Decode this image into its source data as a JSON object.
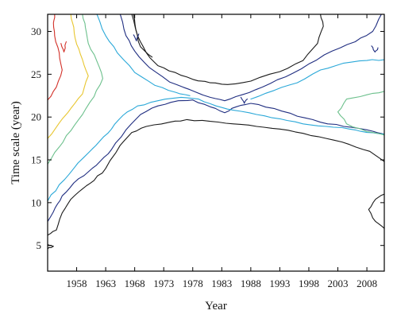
{
  "chart_data": {
    "type": "contour",
    "xlabel": "Year",
    "ylabel": "Time scale (year)",
    "xlim": [
      1953,
      2011
    ],
    "ylim": [
      2,
      32
    ],
    "xticks": [
      1958,
      1963,
      1968,
      1973,
      1978,
      1983,
      1988,
      1993,
      1998,
      2003,
      2008
    ],
    "xtick_labels": [
      "1958",
      "1963",
      "1968",
      "1973",
      "1978",
      "1983",
      "1988",
      "1993",
      "1998",
      "2003",
      "2008"
    ],
    "yticks": [
      5,
      10,
      15,
      20,
      25,
      30
    ],
    "ytick_labels": [
      "5",
      "10",
      "15",
      "20",
      "25",
      "30"
    ],
    "grid": false,
    "contours": [
      {
        "level": 1,
        "color": "#1a1a1a",
        "paths": [
          [
            [
              1953,
              6.2
            ],
            [
              1954.5,
              6.8
            ],
            [
              1955.5,
              8.8
            ],
            [
              1957,
              10.4
            ],
            [
              1959,
              11.6
            ],
            [
              1961,
              12.6
            ],
            [
              1963,
              14
            ],
            [
              1965.5,
              16.7
            ],
            [
              1967.5,
              18.2
            ],
            [
              1970,
              18.9
            ],
            [
              1974,
              19.4
            ],
            [
              1977,
              19.7
            ],
            [
              1981,
              19.5
            ],
            [
              1985,
              19.2
            ],
            [
              1989,
              18.9
            ],
            [
              1993,
              18.6
            ],
            [
              1997,
              18.1
            ],
            [
              2001,
              17.5
            ],
            [
              2005,
              16.8
            ],
            [
              2008.5,
              16
            ],
            [
              2011,
              14.8
            ]
          ],
          [
            [
              1967.5,
              32
            ],
            [
              1968.5,
              29.5
            ],
            [
              1970,
              27.5
            ],
            [
              1972,
              26
            ],
            [
              1975,
              25.2
            ],
            [
              1978,
              24.4
            ],
            [
              1981,
              24
            ],
            [
              1984,
              23.8
            ],
            [
              1988,
              24.2
            ],
            [
              1993,
              25.3
            ],
            [
              1997,
              26.6
            ],
            [
              1999.5,
              28.6
            ],
            [
              2000.5,
              30.6
            ],
            [
              2000,
              32
            ]
          ],
          [
            [
              1967.8,
              32
            ],
            [
              1968.2,
              30.2
            ],
            [
              1969,
              28.2
            ],
            [
              1971,
              27
            ]
          ],
          [
            [
              1953,
              5.1
            ],
            [
              1954,
              4.9
            ],
            [
              1953,
              4.6
            ]
          ],
          [
            [
              2011,
              11
            ],
            [
              2009.5,
              10.4
            ],
            [
              2008.3,
              9.2
            ],
            [
              2009.5,
              7.8
            ],
            [
              2011,
              7
            ]
          ]
        ]
      },
      {
        "level": 2,
        "color": "#1f2d80",
        "paths": [
          [
            [
              1953,
              7.8
            ],
            [
              1954.3,
              9.4
            ],
            [
              1955.5,
              10.8
            ],
            [
              1957.5,
              12.3
            ],
            [
              1960,
              13.6
            ],
            [
              1962,
              14.8
            ],
            [
              1964,
              16.2
            ],
            [
              1966.5,
              18.5
            ],
            [
              1969,
              20.3
            ],
            [
              1972,
              21.3
            ],
            [
              1975.5,
              21.9
            ],
            [
              1978,
              22
            ],
            [
              1981,
              21.2
            ],
            [
              1983.5,
              20.5
            ],
            [
              1985.5,
              21.2
            ],
            [
              1988,
              21.6
            ],
            [
              1992,
              21
            ],
            [
              1996,
              20.1
            ],
            [
              2000,
              19.4
            ],
            [
              2004,
              18.9
            ],
            [
              2008,
              18.5
            ],
            [
              2011,
              18
            ]
          ],
          [
            [
              1965.5,
              32
            ],
            [
              1966.5,
              29.5
            ],
            [
              1968,
              27.7
            ],
            [
              1970.5,
              25.8
            ],
            [
              1974,
              24.1
            ],
            [
              1977.5,
              23.2
            ],
            [
              1981,
              22.3
            ],
            [
              1983.5,
              21.9
            ],
            [
              1986.5,
              22.6
            ],
            [
              1990,
              23.5
            ],
            [
              1994,
              24.7
            ],
            [
              1998,
              26.2
            ],
            [
              2002,
              27.7
            ],
            [
              2006,
              28.8
            ],
            [
              2009,
              30
            ],
            [
              2010.5,
              32
            ]
          ],
          [
            [
              1967.8,
              29.6
            ],
            [
              1968.3,
              28.9
            ],
            [
              1968.7,
              29.7
            ]
          ],
          [
            [
              1986.3,
              22.3
            ],
            [
              1986.9,
              21.6
            ],
            [
              1987.4,
              22.1
            ]
          ],
          [
            [
              2008.8,
              28.3
            ],
            [
              2009.4,
              27.6
            ],
            [
              2009.9,
              28.1
            ]
          ]
        ]
      },
      {
        "level": 3,
        "color": "#2aa8d8",
        "paths": [
          [
            [
              1953,
              10.2
            ],
            [
              1955,
              12.1
            ],
            [
              1957.5,
              14
            ],
            [
              1960,
              15.8
            ],
            [
              1962,
              17.2
            ],
            [
              1964,
              18.6
            ],
            [
              1966,
              20.2
            ],
            [
              1968.5,
              21.3
            ],
            [
              1972,
              21.9
            ],
            [
              1976,
              22.3
            ],
            [
              1979,
              22.1
            ],
            [
              1982,
              21.3
            ],
            [
              1985,
              20.8
            ],
            [
              1989,
              20.3
            ],
            [
              1993,
              19.8
            ],
            [
              1997,
              19.2
            ],
            [
              2001,
              18.9
            ],
            [
              2005,
              18.6
            ],
            [
              2008,
              18.2
            ],
            [
              2011,
              18
            ]
          ],
          [
            [
              1961.5,
              32
            ],
            [
              1963,
              29.5
            ],
            [
              1965,
              27.5
            ],
            [
              1968,
              25.2
            ],
            [
              1971.5,
              23.7
            ],
            [
              1975,
              22.9
            ],
            [
              1977.5,
              22.5
            ]
          ],
          [
            [
              1988,
              22.1
            ],
            [
              1992,
              23.1
            ],
            [
              1996,
              24
            ],
            [
              2000,
              25.5
            ],
            [
              2004,
              26.3
            ],
            [
              2008,
              26.6
            ],
            [
              2011,
              26.7
            ]
          ]
        ]
      },
      {
        "level": 4,
        "color": "#6cc08c",
        "paths": [
          [
            [
              1953,
              14.5
            ],
            [
              1955,
              16.5
            ],
            [
              1957,
              18.4
            ],
            [
              1959,
              20.3
            ],
            [
              1961,
              22.4
            ],
            [
              1962.5,
              24.5
            ],
            [
              1961.5,
              26.5
            ],
            [
              1960,
              28.6
            ],
            [
              1959.5,
              30.5
            ],
            [
              1959,
              32
            ]
          ],
          [
            [
              2011,
              17.9
            ],
            [
              2008,
              18.3
            ],
            [
              2004.5,
              19.2
            ],
            [
              2003,
              20.6
            ],
            [
              2004.5,
              22.1
            ],
            [
              2008,
              22.6
            ],
            [
              2011,
              23
            ]
          ]
        ]
      },
      {
        "level": 5,
        "color": "#e8c630",
        "paths": [
          [
            [
              1953,
              17.5
            ],
            [
              1955,
              19.3
            ],
            [
              1957,
              21
            ],
            [
              1959,
              22.7
            ],
            [
              1960,
              24.8
            ],
            [
              1959,
              26.7
            ],
            [
              1958,
              28.5
            ],
            [
              1957.5,
              30.5
            ],
            [
              1957,
              32
            ]
          ]
        ]
      },
      {
        "level": 6,
        "color": "#d23028",
        "paths": [
          [
            [
              1953,
              22
            ],
            [
              1954.5,
              23.5
            ],
            [
              1955.5,
              25.5
            ],
            [
              1955,
              27.5
            ],
            [
              1954.2,
              29.5
            ],
            [
              1954,
              31
            ],
            [
              1954.2,
              32
            ]
          ],
          [
            [
              1955.3,
              28.6
            ],
            [
              1955.8,
              27.6
            ],
            [
              1956.2,
              28.8
            ]
          ]
        ]
      }
    ]
  }
}
